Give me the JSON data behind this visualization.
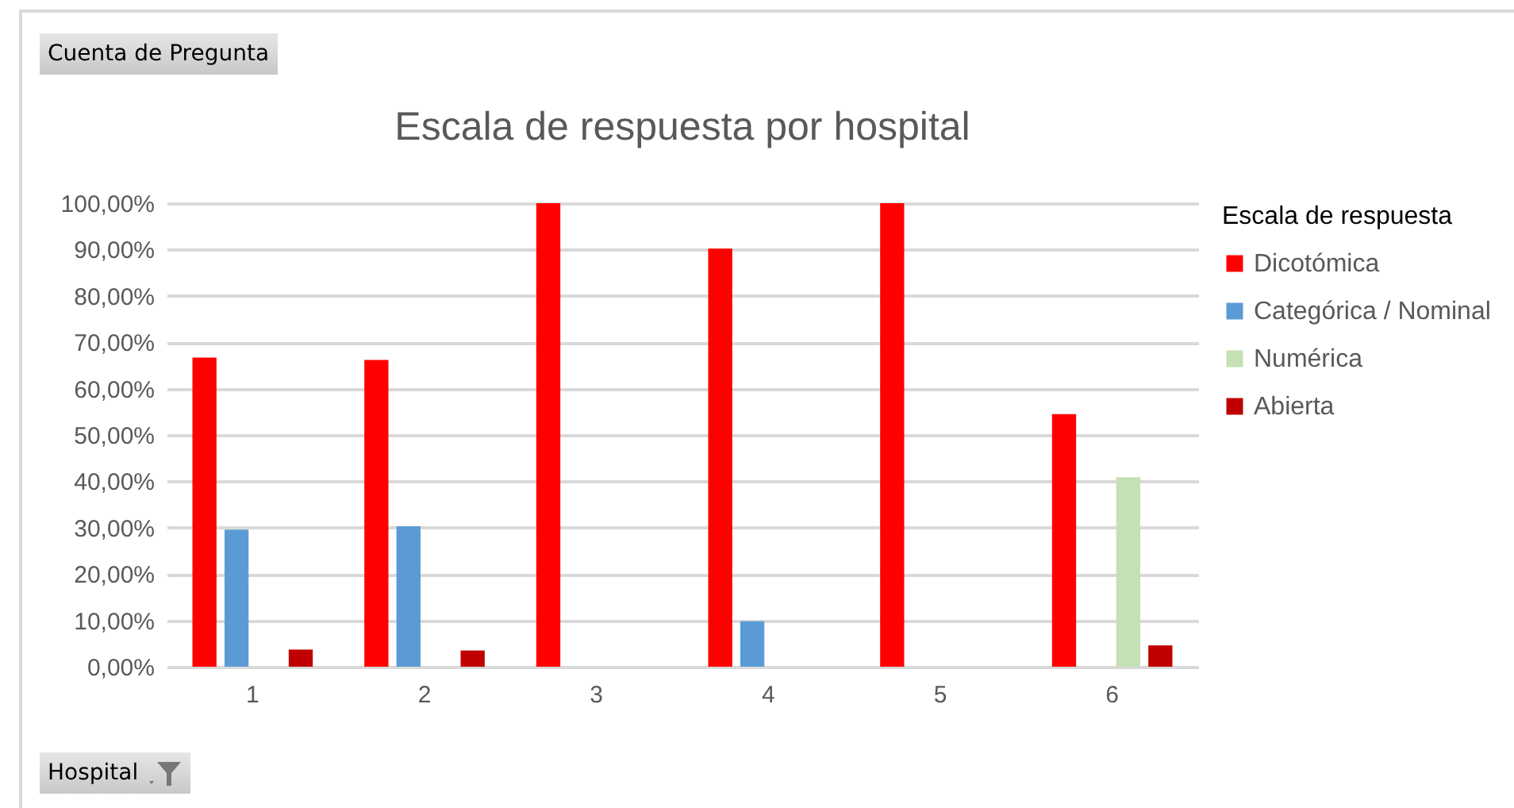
{
  "chart_data": {
    "type": "bar",
    "title": "Escala de respuesta por hospital",
    "xlabel": "Hospital",
    "legend_title": "Escala de respuesta",
    "annotations": [
      "Cuenta de Pregunta"
    ],
    "categories": [
      "1",
      "2",
      "3",
      "4",
      "5",
      "6"
    ],
    "series": [
      {
        "name": "Dicotómica",
        "color": "#ff0000",
        "values": [
          66.7,
          66.2,
          100,
          90.2,
          100,
          54.5
        ]
      },
      {
        "name": "Categórica / Nominal",
        "color": "#5b9bd5",
        "values": [
          29.6,
          30.3,
          null,
          9.8,
          null,
          null
        ]
      },
      {
        "name": "Numérica",
        "color": "#c5e0b4",
        "values": [
          null,
          null,
          null,
          null,
          null,
          40.9
        ]
      },
      {
        "name": "Abierta",
        "color": "#c00000",
        "values": [
          3.7,
          3.5,
          null,
          null,
          null,
          4.6
        ]
      }
    ],
    "ylim": [
      0,
      100
    ],
    "yticks": [
      {
        "value": 0,
        "label": "0,00%"
      },
      {
        "value": 10,
        "label": "10,00%"
      },
      {
        "value": 20,
        "label": "20,00%"
      },
      {
        "value": 30,
        "label": "30,00%"
      },
      {
        "value": 40,
        "label": "40,00%"
      },
      {
        "value": 50,
        "label": "50,00%"
      },
      {
        "value": 60,
        "label": "60,00%"
      },
      {
        "value": 70,
        "label": "70,00%"
      },
      {
        "value": 80,
        "label": "80,00%"
      },
      {
        "value": 90,
        "label": "90,00%"
      },
      {
        "value": 100,
        "label": "100,00%"
      }
    ],
    "grid": "y",
    "legend": "right"
  }
}
